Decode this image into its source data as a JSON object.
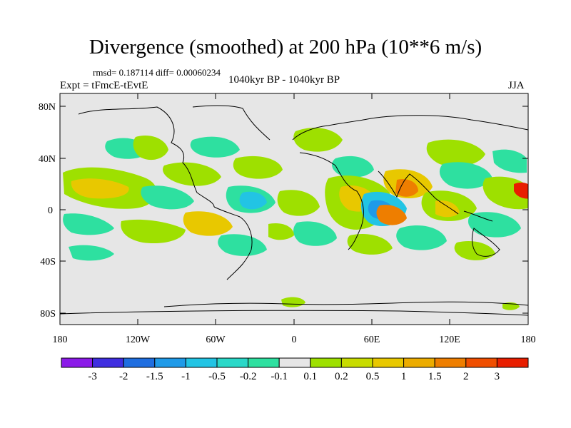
{
  "title": "Divergence (smoothed) at 200 hPa (10**6 m/s)",
  "stats": "rmsd= 0.187114 diff= 0.00060234",
  "experiment": "Expt = tFmcE-tEvtE",
  "period": "1040kyr BP - 1040kyr BP",
  "season": "JJA",
  "map": {
    "background_color": "#e6e6e6",
    "lat_labels": [
      "80N",
      "40N",
      "0",
      "40S",
      "80S"
    ],
    "lon_labels": [
      "180",
      "120W",
      "60W",
      "0",
      "60E",
      "120E",
      "180"
    ]
  },
  "colorbar": {
    "colors": [
      "#8b1ae8",
      "#3f2ee0",
      "#1f6ee0",
      "#1f9ae8",
      "#22c4e4",
      "#2ad8c8",
      "#2ee0a0",
      "#e6e6e6",
      "#9ee000",
      "#c8dc00",
      "#e8c800",
      "#ecac00",
      "#ee7e00",
      "#f04e00",
      "#e81e00"
    ],
    "labels": [
      "-3",
      "-2",
      "-1.5",
      "-1",
      "-0.5",
      "-0.2",
      "-0.1",
      "0.1",
      "0.2",
      "0.5",
      "1",
      "1.5",
      "2",
      "3"
    ]
  }
}
